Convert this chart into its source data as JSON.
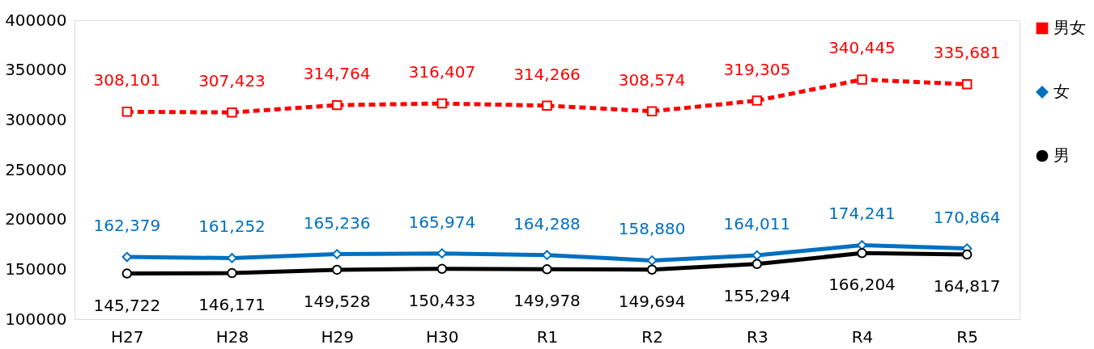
{
  "chart_data": {
    "type": "line",
    "categories": [
      "H27",
      "H28",
      "H29",
      "H30",
      "R1",
      "R2",
      "R3",
      "R4",
      "R5"
    ],
    "series": [
      {
        "name": "男女",
        "color": "#ff0000",
        "marker": "square",
        "line_style": "dashed",
        "values": [
          308101,
          307423,
          314764,
          316407,
          314266,
          308574,
          319305,
          340445,
          335681
        ],
        "value_labels": [
          "308,101",
          "307,423",
          "314,764",
          "316,407",
          "314,266",
          "308,574",
          "319,305",
          "340,445",
          "335,681"
        ]
      },
      {
        "name": "女",
        "color": "#0070c0",
        "marker": "diamond",
        "line_style": "solid",
        "values": [
          162379,
          161252,
          165236,
          165974,
          164288,
          158880,
          164011,
          174241,
          170864
        ],
        "value_labels": [
          "162,379",
          "161,252",
          "165,236",
          "165,974",
          "164,288",
          "158,880",
          "164,011",
          "174,241",
          "170,864"
        ]
      },
      {
        "name": "男",
        "color": "#000000",
        "marker": "circle",
        "line_style": "solid",
        "values": [
          145722,
          146171,
          149528,
          150433,
          149978,
          149694,
          155294,
          166204,
          164817
        ],
        "value_labels": [
          "145,722",
          "146,171",
          "149,528",
          "150,433",
          "149,978",
          "149,694",
          "155,294",
          "166,204",
          "164,817"
        ]
      }
    ],
    "ylim": [
      100000,
      400000
    ],
    "yticks": [
      100000,
      150000,
      200000,
      250000,
      300000,
      350000,
      400000
    ],
    "grid": false,
    "legend": "right"
  }
}
